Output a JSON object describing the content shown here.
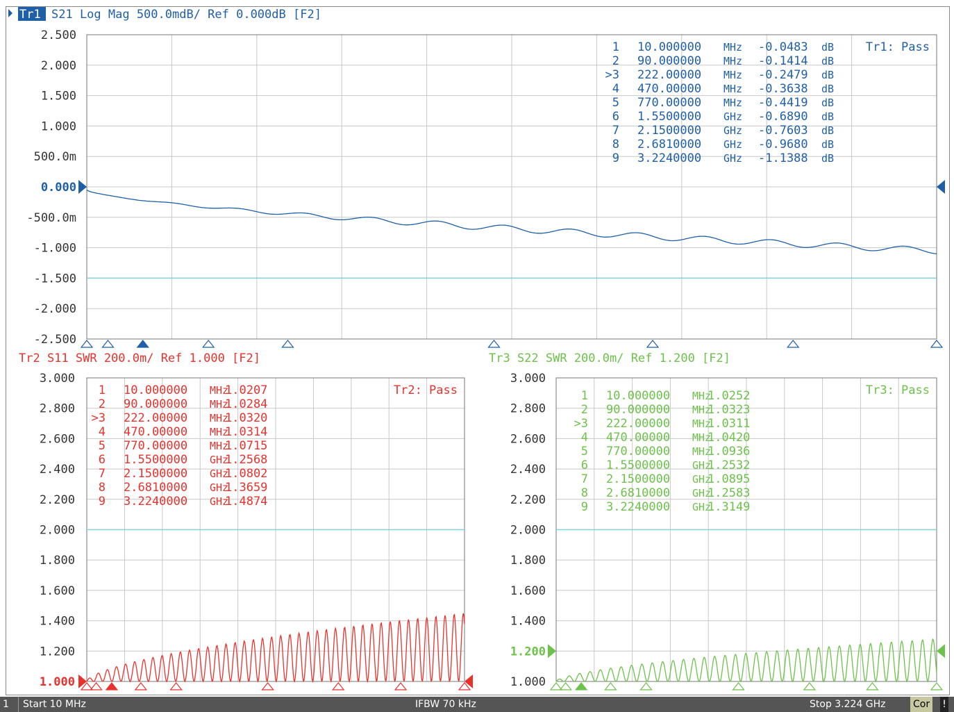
{
  "colors": {
    "tr1": "#1f5fa8",
    "tr2": "#e8322d",
    "tr3": "#6cc24a",
    "grid": "#c8c8c8",
    "limit": "#7fd3dc"
  },
  "traces": [
    {
      "id": "tr1",
      "header": {
        "badge": "Tr1",
        "text": "S21 Log Mag 500.0mdB/ Ref 0.000dB [F2]"
      },
      "pass": "Tr1: Pass",
      "y_ticks": [
        "2.500",
        "2.000",
        "1.500",
        "1.000",
        "500.0m",
        "0.000",
        "-500.0m",
        "-1.000",
        "-1.500",
        "-2.000",
        "-2.500"
      ],
      "markers": [
        {
          "num": "1",
          "freq": "10.000000",
          "unit": "MHz",
          "val": "-0.0483",
          "val_unit": "dB"
        },
        {
          "num": "2",
          "freq": "90.000000",
          "unit": "MHz",
          "val": "-0.1414",
          "val_unit": "dB"
        },
        {
          "num": ">3",
          "freq": "222.00000",
          "unit": "MHz",
          "val": "-0.2479",
          "val_unit": "dB"
        },
        {
          "num": "4",
          "freq": "470.00000",
          "unit": "MHz",
          "val": "-0.3638",
          "val_unit": "dB"
        },
        {
          "num": "5",
          "freq": "770.00000",
          "unit": "MHz",
          "val": "-0.4419",
          "val_unit": "dB"
        },
        {
          "num": "6",
          "freq": "1.5500000",
          "unit": "GHz",
          "val": "-0.6890",
          "val_unit": "dB"
        },
        {
          "num": "7",
          "freq": "2.1500000",
          "unit": "GHz",
          "val": "-0.7603",
          "val_unit": "dB"
        },
        {
          "num": "8",
          "freq": "2.6810000",
          "unit": "GHz",
          "val": "-0.9680",
          "val_unit": "dB"
        },
        {
          "num": "9",
          "freq": "3.2240000",
          "unit": "GHz",
          "val": "-1.1388",
          "val_unit": "dB"
        }
      ]
    },
    {
      "id": "tr2",
      "header": {
        "badge": "",
        "text": "Tr2 S11 SWR 200.0m/ Ref 1.000 [F2]"
      },
      "pass": "Tr2: Pass",
      "y_ticks": [
        "3.000",
        "2.800",
        "2.600",
        "2.400",
        "2.200",
        "2.000",
        "1.800",
        "1.600",
        "1.400",
        "1.200",
        "1.000"
      ],
      "markers": [
        {
          "num": "1",
          "freq": "10.000000",
          "unit": "MHz",
          "val": "1.0207",
          "val_unit": ""
        },
        {
          "num": "2",
          "freq": "90.000000",
          "unit": "MHz",
          "val": "1.0284",
          "val_unit": ""
        },
        {
          "num": ">3",
          "freq": "222.00000",
          "unit": "MHz",
          "val": "1.0320",
          "val_unit": ""
        },
        {
          "num": "4",
          "freq": "470.00000",
          "unit": "MHz",
          "val": "1.0314",
          "val_unit": ""
        },
        {
          "num": "5",
          "freq": "770.00000",
          "unit": "MHz",
          "val": "1.0715",
          "val_unit": ""
        },
        {
          "num": "6",
          "freq": "1.5500000",
          "unit": "GHz",
          "val": "1.2568",
          "val_unit": ""
        },
        {
          "num": "7",
          "freq": "2.1500000",
          "unit": "GHz",
          "val": "1.0802",
          "val_unit": ""
        },
        {
          "num": "8",
          "freq": "2.6810000",
          "unit": "GHz",
          "val": "1.3659",
          "val_unit": ""
        },
        {
          "num": "9",
          "freq": "3.2240000",
          "unit": "GHz",
          "val": "1.4874",
          "val_unit": ""
        }
      ]
    },
    {
      "id": "tr3",
      "header": {
        "badge": "",
        "text": "Tr3 S22 SWR 200.0m/ Ref 1.200 [F2]"
      },
      "pass": "Tr3: Pass",
      "y_ticks": [
        "3.000",
        "2.800",
        "2.600",
        "2.400",
        "2.200",
        "2.000",
        "1.800",
        "1.600",
        "1.400",
        "1.200",
        "1.000"
      ],
      "markers": [
        {
          "num": "1",
          "freq": "10.000000",
          "unit": "MHz",
          "val": "1.0252",
          "val_unit": ""
        },
        {
          "num": "2",
          "freq": "90.000000",
          "unit": "MHz",
          "val": "1.0323",
          "val_unit": ""
        },
        {
          "num": ">3",
          "freq": "222.00000",
          "unit": "MHz",
          "val": "1.0311",
          "val_unit": ""
        },
        {
          "num": "4",
          "freq": "470.00000",
          "unit": "MHz",
          "val": "1.0420",
          "val_unit": ""
        },
        {
          "num": "5",
          "freq": "770.00000",
          "unit": "MHz",
          "val": "1.0936",
          "val_unit": ""
        },
        {
          "num": "6",
          "freq": "1.5500000",
          "unit": "GHz",
          "val": "1.2532",
          "val_unit": ""
        },
        {
          "num": "7",
          "freq": "2.1500000",
          "unit": "GHz",
          "val": "1.0895",
          "val_unit": ""
        },
        {
          "num": "8",
          "freq": "2.6810000",
          "unit": "GHz",
          "val": "1.2583",
          "val_unit": ""
        },
        {
          "num": "9",
          "freq": "3.2240000",
          "unit": "GHz",
          "val": "1.3149",
          "val_unit": ""
        }
      ]
    }
  ],
  "status": {
    "channel": "1",
    "start": "Start 10 MHz",
    "ifbw": "IFBW 70 kHz",
    "stop": "Stop 3.224 GHz",
    "cor": "Cor",
    "alert": "!"
  }
}
